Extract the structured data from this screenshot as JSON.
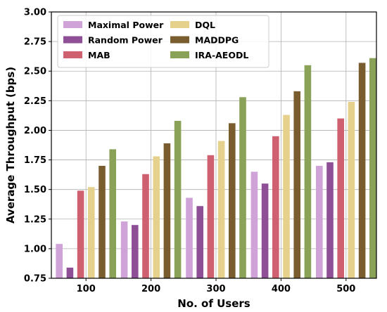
{
  "chart_data": {
    "type": "bar",
    "title": "",
    "xlabel": "No. of Users",
    "ylabel": "Average Throughput (bps)",
    "categories": [
      "100",
      "200",
      "300",
      "400",
      "500"
    ],
    "ylim": [
      0.75,
      3.0
    ],
    "yticks": [
      0.75,
      1.0,
      1.25,
      1.5,
      1.75,
      2.0,
      2.25,
      2.5,
      2.75,
      3.0
    ],
    "ytick_labels": [
      "0.75",
      "1.00",
      "1.25",
      "1.50",
      "1.75",
      "2.00",
      "2.25",
      "2.50",
      "2.75",
      "3.00"
    ],
    "grid": true,
    "legend_position": "top-left",
    "series": [
      {
        "name": "Maximal Power",
        "color": "#cfa2d8",
        "values": [
          1.04,
          1.23,
          1.43,
          1.65,
          1.7
        ]
      },
      {
        "name": "Random Power",
        "color": "#8e4f96",
        "values": [
          0.84,
          1.2,
          1.36,
          1.55,
          1.73
        ]
      },
      {
        "name": "MAB",
        "color": "#cf6070",
        "values": [
          1.49,
          1.63,
          1.79,
          1.95,
          2.1
        ]
      },
      {
        "name": "DQL",
        "color": "#e6d18c",
        "values": [
          1.52,
          1.78,
          1.91,
          2.13,
          2.24
        ]
      },
      {
        "name": "MADDPG",
        "color": "#7a5d2f",
        "values": [
          1.7,
          1.89,
          2.06,
          2.33,
          2.57
        ]
      },
      {
        "name": "IRA-AEODL",
        "color": "#8aa257",
        "values": [
          1.84,
          2.08,
          2.28,
          2.55,
          2.61
        ]
      }
    ]
  }
}
